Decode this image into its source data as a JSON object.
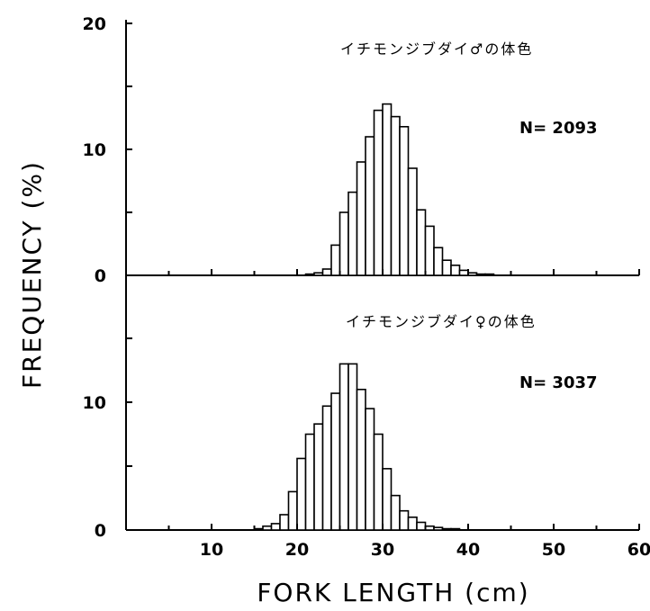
{
  "chart_data": [
    {
      "type": "bar",
      "title": "イチモンジブダイ♂の体色",
      "annotation": "N= 2093",
      "xlabel": "FORK LENGTH (cm)",
      "ylabel": "FREQUENCY (%)",
      "xlim": [
        0,
        60
      ],
      "ylim": [
        0,
        20
      ],
      "y_ticks": [
        "0",
        "10",
        "20"
      ],
      "x_ticks": [],
      "bin_width": 1,
      "x": [
        21,
        22,
        23,
        24,
        25,
        26,
        27,
        28,
        29,
        30,
        31,
        32,
        33,
        34,
        35,
        36,
        37,
        38,
        39,
        40,
        41,
        42
      ],
      "values": [
        0.1,
        0.2,
        0.5,
        2.4,
        5.0,
        6.6,
        9.0,
        11.0,
        13.1,
        13.6,
        12.6,
        11.8,
        8.5,
        5.2,
        3.9,
        2.2,
        1.2,
        0.8,
        0.4,
        0.2,
        0.1,
        0.1
      ]
    },
    {
      "type": "bar",
      "title": "イチモンジブダイ♀の体色",
      "annotation": "N= 3037",
      "xlabel": "FORK LENGTH (cm)",
      "ylabel": "FREQUENCY (%)",
      "xlim": [
        0,
        60
      ],
      "ylim": [
        0,
        15
      ],
      "y_ticks": [
        "0",
        "10"
      ],
      "x_ticks": [
        "10",
        "20",
        "30",
        "40",
        "50",
        "60"
      ],
      "bin_width": 1,
      "x": [
        15,
        16,
        17,
        18,
        19,
        20,
        21,
        22,
        23,
        24,
        25,
        26,
        27,
        28,
        29,
        30,
        31,
        32,
        33,
        34,
        35,
        36,
        37,
        38
      ],
      "values": [
        0.1,
        0.3,
        0.5,
        1.2,
        3.0,
        5.6,
        7.5,
        8.3,
        9.7,
        10.7,
        13.0,
        13.0,
        11.0,
        9.5,
        7.5,
        4.8,
        2.7,
        1.5,
        1.0,
        0.6,
        0.3,
        0.2,
        0.1,
        0.1
      ]
    }
  ],
  "axes": {
    "x_title": "FORK LENGTH  (cm)",
    "y_title": "FREQUENCY  (%)"
  }
}
